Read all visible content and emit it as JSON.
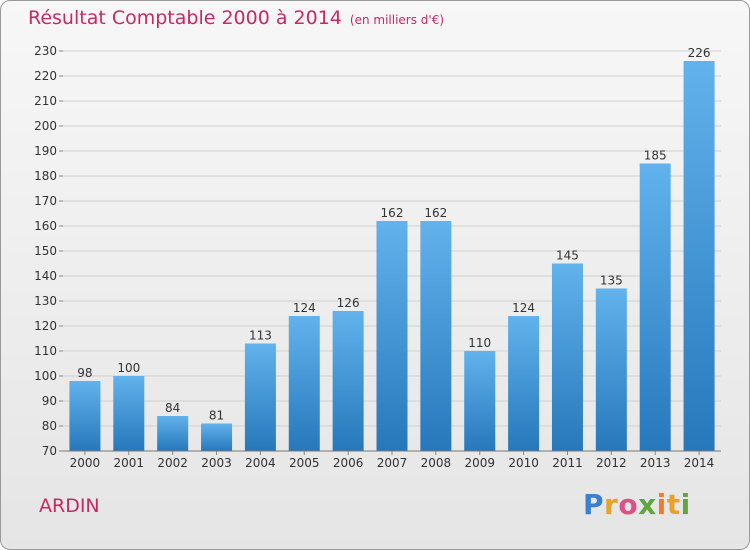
{
  "header": {
    "title": "Résultat Comptable 2000 à 2014",
    "subtitle": "(en milliers d'€)"
  },
  "commune": "ARDIN",
  "logo": {
    "text": "Proxiti",
    "colors": [
      "#3a7fd0",
      "#e6a32a",
      "#e04f86",
      "#5fa63c",
      "#f07b2c"
    ]
  },
  "chart_data": {
    "type": "bar",
    "title": "Résultat Comptable 2000 à 2014",
    "subtitle": "(en milliers d'€)",
    "xlabel": "",
    "ylabel": "",
    "categories": [
      "2000",
      "2001",
      "2002",
      "2003",
      "2004",
      "2005",
      "2006",
      "2007",
      "2008",
      "2009",
      "2010",
      "2011",
      "2012",
      "2013",
      "2014"
    ],
    "values": [
      98,
      100,
      84,
      81,
      113,
      124,
      126,
      162,
      162,
      110,
      124,
      145,
      135,
      185,
      226
    ],
    "ylim": [
      70,
      230
    ],
    "yticks": [
      70,
      80,
      90,
      100,
      110,
      120,
      130,
      140,
      150,
      160,
      170,
      180,
      190,
      200,
      210,
      220,
      230
    ],
    "grid": true,
    "bar_color_top": "#62b2ec",
    "bar_color_bottom": "#2678bb"
  }
}
